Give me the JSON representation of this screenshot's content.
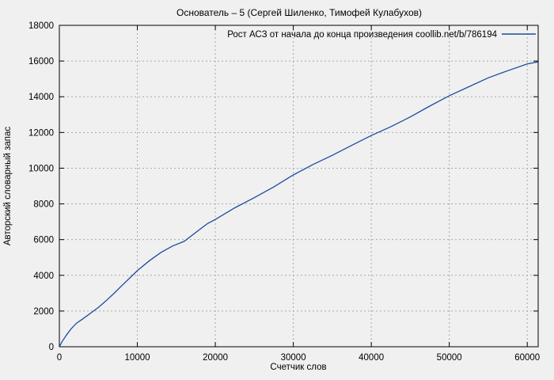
{
  "window": {
    "title": "Основатель – 5 (Сергей Шиленко, Тимофей Кулабухов)"
  },
  "chart_data": {
    "type": "line",
    "title": "Основатель – 5 (Сергей Шиленко, Тимофей Кулабухов)",
    "legend": "Рост АСЗ от начала до конца произведения coollib.net/b/786194",
    "legend_position": "top-right-inside",
    "xlabel": "Счетчик слов",
    "ylabel": "Авторский словарный запас",
    "xlim": [
      0,
      61400
    ],
    "ylim": [
      0,
      18000
    ],
    "xticks": [
      0,
      10000,
      20000,
      30000,
      40000,
      50000,
      60000
    ],
    "yticks": [
      0,
      2000,
      4000,
      6000,
      8000,
      10000,
      12000,
      14000,
      16000,
      18000
    ],
    "grid": "dotted",
    "line_color": "#1a4c9f",
    "legend_color": "#000080",
    "background_color": "#f0f0f0",
    "series": [
      {
        "name": "Рост АСЗ от начала до конца произведения coollib.net/b/786194",
        "points": [
          [
            0,
            0
          ],
          [
            400,
            320
          ],
          [
            900,
            650
          ],
          [
            1500,
            1000
          ],
          [
            2200,
            1320
          ],
          [
            3000,
            1560
          ],
          [
            4000,
            1880
          ],
          [
            5000,
            2200
          ],
          [
            6000,
            2580
          ],
          [
            7000,
            2990
          ],
          [
            8000,
            3420
          ],
          [
            9000,
            3840
          ],
          [
            10000,
            4260
          ],
          [
            11500,
            4800
          ],
          [
            13000,
            5270
          ],
          [
            14500,
            5640
          ],
          [
            16000,
            5900
          ],
          [
            17500,
            6400
          ],
          [
            19000,
            6900
          ],
          [
            20000,
            7130
          ],
          [
            22500,
            7780
          ],
          [
            25000,
            8350
          ],
          [
            27500,
            8950
          ],
          [
            30000,
            9620
          ],
          [
            32500,
            10200
          ],
          [
            35000,
            10720
          ],
          [
            37500,
            11280
          ],
          [
            40000,
            11830
          ],
          [
            42500,
            12320
          ],
          [
            45000,
            12870
          ],
          [
            47500,
            13480
          ],
          [
            50000,
            14060
          ],
          [
            52500,
            14560
          ],
          [
            55000,
            15060
          ],
          [
            57500,
            15460
          ],
          [
            60000,
            15840
          ],
          [
            61350,
            15950
          ]
        ]
      }
    ]
  }
}
